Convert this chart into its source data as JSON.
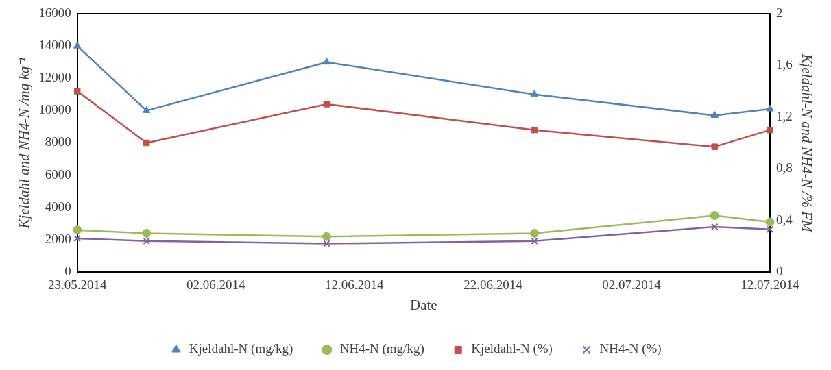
{
  "chart_data": {
    "type": "line",
    "xlabel": "Date",
    "ylabel": "Kjeldahl and NH4-N /mg kg⁻¹",
    "y2label": "Kjeldahl-N and NH4-N /% FM",
    "x": [
      "2014-05-23",
      "2014-05-28",
      "2014-06-10",
      "2014-06-25",
      "2014-07-08",
      "2014-07-12"
    ],
    "xlim": [
      "2014-05-23",
      "2014-07-12"
    ],
    "xticks": [
      {
        "value": "2014-05-23",
        "label": "23.05.2014"
      },
      {
        "value": "2014-06-02",
        "label": "02.06.2014"
      },
      {
        "value": "2014-06-12",
        "label": "12.06.2014"
      },
      {
        "value": "2014-06-22",
        "label": "22.06.2014"
      },
      {
        "value": "2014-07-02",
        "label": "02.07.2014"
      },
      {
        "value": "2014-07-12",
        "label": "12.07.2014"
      }
    ],
    "ylim": [
      0,
      16000
    ],
    "yticks": [
      0,
      2000,
      4000,
      6000,
      8000,
      10000,
      12000,
      14000,
      16000
    ],
    "y2lim": [
      0,
      2
    ],
    "y2ticks": [
      0,
      {
        "value": 0.4,
        "label": "0,4"
      },
      {
        "value": 0.8,
        "label": "0,8"
      },
      {
        "value": 1.2,
        "label": "1,2"
      },
      {
        "value": 1.6,
        "label": "1,6"
      },
      2
    ],
    "grid": false,
    "legend": "bottom",
    "line_style": "solid",
    "series": [
      {
        "name": "Kjeldahl-N (mg/kg)",
        "color": "#4f81bd",
        "marker": "triangle",
        "values": [
          14000,
          10000,
          13000,
          11000,
          9700,
          10100
        ]
      },
      {
        "name": "NH4-N (mg/kg)",
        "color": "#9bbb59",
        "marker": "circle",
        "values": [
          2600,
          2400,
          2200,
          2400,
          3500,
          3100
        ]
      },
      {
        "name": "Kjeldahl-N (%)",
        "color": "#c0504d",
        "marker": "square",
        "axis": "y2",
        "values": [
          1.4,
          1.0,
          1.3,
          1.1,
          0.97,
          1.1
        ]
      },
      {
        "name": "NH4-N (%)",
        "color": "#8064a2",
        "marker": "cross",
        "axis": "y2",
        "values": [
          0.26,
          0.24,
          0.22,
          0.24,
          0.35,
          0.33
        ]
      }
    ]
  }
}
